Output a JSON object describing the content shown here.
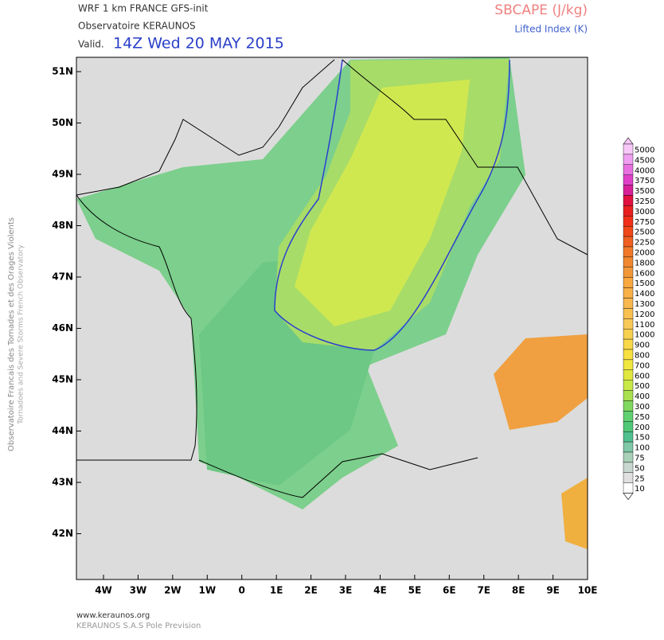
{
  "header": {
    "model": "WRF 1 km FRANCE  GFS-init",
    "org": "Observatoire KERAUNOS",
    "valid_prefix": "Valid.",
    "valid_time": "14Z Wed 20 MAY 2015",
    "field": "SBCAPE (J/kg)",
    "overlay": "Lifted Index (K)"
  },
  "side_text": {
    "line1": "Observatoire Francais des Tornades et des Orages Violents",
    "line2": "Tornadoes and Severe Storms French Observatory"
  },
  "lat_ticks": [
    "51N",
    "50N",
    "49N",
    "48N",
    "47N",
    "46N",
    "45N",
    "44N",
    "43N",
    "42N"
  ],
  "lon_ticks": [
    "4W",
    "3W",
    "2W",
    "1W",
    "0",
    "1E",
    "2E",
    "3E",
    "4E",
    "5E",
    "6E",
    "7E",
    "8E",
    "9E",
    "10E"
  ],
  "colorbar": {
    "levels": [
      5000,
      4500,
      4000,
      3750,
      3500,
      3250,
      3000,
      2750,
      2500,
      2250,
      2000,
      1800,
      1600,
      1500,
      1400,
      1300,
      1200,
      1100,
      1000,
      900,
      800,
      700,
      600,
      500,
      400,
      300,
      250,
      200,
      150,
      100,
      75,
      50,
      25,
      10
    ],
    "colors": [
      "#f8c8f8",
      "#f0a0f0",
      "#e870e0",
      "#e040c8",
      "#d82098",
      "#e01040",
      "#e82020",
      "#f03018",
      "#f04818",
      "#f06020",
      "#f07828",
      "#f08830",
      "#f09838",
      "#f8a840",
      "#f8b048",
      "#f8b850",
      "#f8c050",
      "#f8c858",
      "#f8d050",
      "#f8d848",
      "#f8e040",
      "#f0e840",
      "#e0e840",
      "#c8e848",
      "#a8e050",
      "#80d860",
      "#60d070",
      "#50c878",
      "#50c090",
      "#80c8a8",
      "#a8d0b8",
      "#c8d8d0",
      "#e0e0e0",
      "#ffffff"
    ]
  },
  "footer": {
    "url": "www.keraunos.org",
    "company": "KERAUNOS S.A.S Pole Prevision"
  }
}
